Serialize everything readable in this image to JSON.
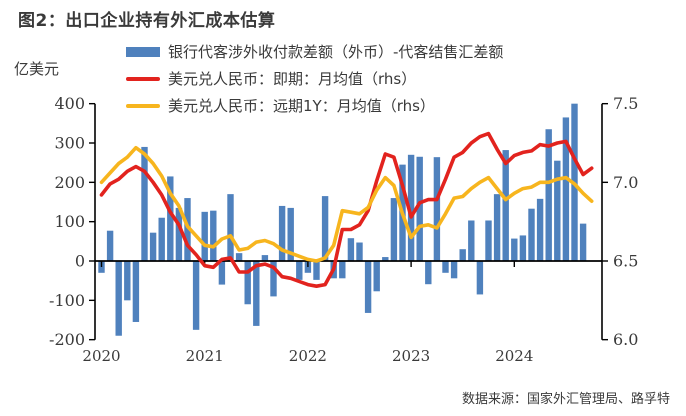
{
  "title": "图2：出口企业持有外汇成本估算",
  "source_note": "数据来源：国家外汇管理局、路孚特",
  "legend": [
    {
      "type": "bar",
      "color": "#4F81BD",
      "label": "银行代客涉外收付款差额（外币）-代客结售汇差额"
    },
    {
      "type": "line",
      "color": "#E2231E",
      "label": "美元兑人民币：即期：月均值（rhs）"
    },
    {
      "type": "line",
      "color": "#F7B51E",
      "label": "美元兑人民币：远期1Y：月均值（rhs）"
    }
  ],
  "chart_data": {
    "type": "bar",
    "subtype": "monthly bar + two lines (combo, dual axis)",
    "x_start": "2020-01",
    "x_end": "2024-10",
    "x_tick_labels": [
      "2020",
      "2021",
      "2022",
      "2023",
      "2024"
    ],
    "left_axis": {
      "label": "亿美元",
      "ticks": [
        400,
        300,
        200,
        100,
        0,
        -100,
        -200
      ],
      "range": [
        -200,
        400
      ]
    },
    "right_axis": {
      "ticks": [
        "7.5",
        "7.0",
        "6.5",
        "6.0"
      ],
      "range": [
        6.0,
        7.5
      ]
    },
    "grid": "off",
    "legend_position": "top",
    "bar_series": {
      "name": "银行代客涉外收付款差额（外币）-代客结售汇差额",
      "axis": "left",
      "unit": "亿美元",
      "color": "#4F81BD",
      "values": [
        -30,
        77,
        -190,
        -100,
        -155,
        290,
        72,
        110,
        215,
        135,
        160,
        -175,
        125,
        128,
        -60,
        170,
        20,
        -110,
        -165,
        15,
        -90,
        140,
        135,
        -48,
        -30,
        -48,
        165,
        -44,
        -44,
        58,
        47,
        -132,
        -77,
        10,
        160,
        245,
        270,
        265,
        -59,
        264,
        -30,
        -44,
        30,
        103,
        -85,
        103,
        170,
        282,
        57,
        65,
        133,
        158,
        335,
        255,
        365,
        400,
        95,
        null
      ]
    },
    "line_series": [
      {
        "name": "美元兑人民币：即期：月均值（rhs）",
        "axis": "right",
        "color": "#E2231E",
        "values": [
          6.92,
          6.99,
          7.02,
          7.07,
          7.1,
          7.07,
          7.0,
          6.92,
          6.81,
          6.73,
          6.6,
          6.54,
          6.47,
          6.46,
          6.51,
          6.52,
          6.43,
          6.43,
          6.47,
          6.48,
          6.46,
          6.4,
          6.39,
          6.37,
          6.35,
          6.34,
          6.35,
          6.45,
          6.7,
          6.7,
          6.73,
          6.82,
          7.01,
          7.18,
          7.16,
          6.98,
          6.78,
          6.87,
          6.89,
          6.89,
          7.02,
          7.16,
          7.19,
          7.25,
          7.29,
          7.31,
          7.21,
          7.12,
          7.17,
          7.19,
          7.2,
          7.24,
          7.23,
          7.25,
          7.26,
          7.15,
          7.05,
          7.09
        ]
      },
      {
        "name": "美元兑人民币：远期1Y：月均值（rhs）",
        "axis": "right",
        "color": "#F7B51E",
        "values": [
          7.0,
          7.06,
          7.12,
          7.16,
          7.22,
          7.18,
          7.12,
          7.04,
          6.93,
          6.85,
          6.72,
          6.66,
          6.6,
          6.59,
          6.64,
          6.66,
          6.57,
          6.58,
          6.62,
          6.63,
          6.61,
          6.57,
          6.55,
          6.53,
          6.51,
          6.5,
          6.52,
          6.6,
          6.82,
          6.81,
          6.8,
          6.84,
          6.95,
          7.03,
          6.98,
          6.8,
          6.65,
          6.72,
          6.73,
          6.71,
          6.8,
          6.9,
          6.91,
          6.96,
          7.0,
          7.03,
          6.96,
          6.89,
          6.93,
          6.96,
          6.97,
          7.0,
          7.0,
          7.02,
          7.03,
          6.99,
          6.93,
          6.88
        ]
      }
    ]
  }
}
